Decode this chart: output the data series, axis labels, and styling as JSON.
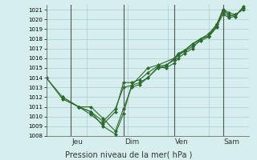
{
  "xlabel": "Pression niveau de la mer( hPa )",
  "ylim": [
    1008,
    1021.5
  ],
  "yticks": [
    1008,
    1009,
    1010,
    1011,
    1012,
    1013,
    1014,
    1015,
    1016,
    1017,
    1018,
    1019,
    1020,
    1021
  ],
  "day_labels": [
    "Jeu",
    "Dim",
    "Ven",
    "Sam"
  ],
  "day_positions": [
    0.12,
    0.38,
    0.63,
    0.87
  ],
  "background_color": "#d6eeee",
  "grid_color": "#aacccc",
  "line_color": "#2d6a2d",
  "lines": [
    [
      0.0,
      1014.0,
      0.08,
      1012.0,
      0.16,
      1011.0,
      0.22,
      1010.5,
      0.28,
      1009.0,
      0.34,
      1008.2,
      0.38,
      1010.3,
      0.42,
      1013.2,
      0.46,
      1013.5,
      0.5,
      1014.0,
      0.55,
      1015.0,
      0.59,
      1015.2,
      0.63,
      1016.0,
      0.65,
      1016.5,
      0.68,
      1016.8,
      0.72,
      1017.5,
      0.76,
      1018.0,
      0.8,
      1018.3,
      0.84,
      1019.3,
      0.87,
      1020.5,
      0.9,
      1020.2,
      0.93,
      1020.3,
      0.97,
      1021.2
    ],
    [
      0.0,
      1014.0,
      0.08,
      1011.8,
      0.16,
      1011.0,
      0.22,
      1011.0,
      0.28,
      1009.8,
      0.34,
      1008.5,
      0.38,
      1010.8,
      0.42,
      1013.0,
      0.46,
      1013.3,
      0.5,
      1014.0,
      0.55,
      1015.1,
      0.59,
      1015.0,
      0.63,
      1015.5,
      0.65,
      1016.0,
      0.68,
      1016.5,
      0.72,
      1017.0,
      0.76,
      1018.0,
      0.8,
      1018.3,
      0.84,
      1019.5,
      0.87,
      1020.8,
      0.9,
      1020.3,
      0.93,
      1020.5,
      0.97,
      1021.0
    ],
    [
      0.08,
      1012.0,
      0.16,
      1011.0,
      0.22,
      1010.2,
      0.28,
      1009.2,
      0.34,
      1010.5,
      0.38,
      1013.5,
      0.42,
      1013.5,
      0.46,
      1013.8,
      0.5,
      1014.5,
      0.55,
      1015.2,
      0.59,
      1015.3,
      0.63,
      1015.8,
      0.65,
      1016.3,
      0.68,
      1016.7,
      0.72,
      1017.2,
      0.76,
      1017.8,
      0.8,
      1018.2,
      0.84,
      1019.2,
      0.87,
      1021.0,
      0.9,
      1020.5,
      0.93,
      1020.3,
      0.97,
      1021.3
    ],
    [
      0.16,
      1011.0,
      0.22,
      1010.5,
      0.28,
      1009.5,
      0.34,
      1010.8,
      0.38,
      1013.0,
      0.42,
      1013.2,
      0.5,
      1015.0,
      0.55,
      1015.3,
      0.63,
      1016.0,
      0.68,
      1016.8,
      0.76,
      1018.0,
      0.8,
      1018.5,
      0.84,
      1019.5,
      0.87,
      1021.0,
      0.9,
      1020.7,
      0.93,
      1020.5
    ]
  ]
}
